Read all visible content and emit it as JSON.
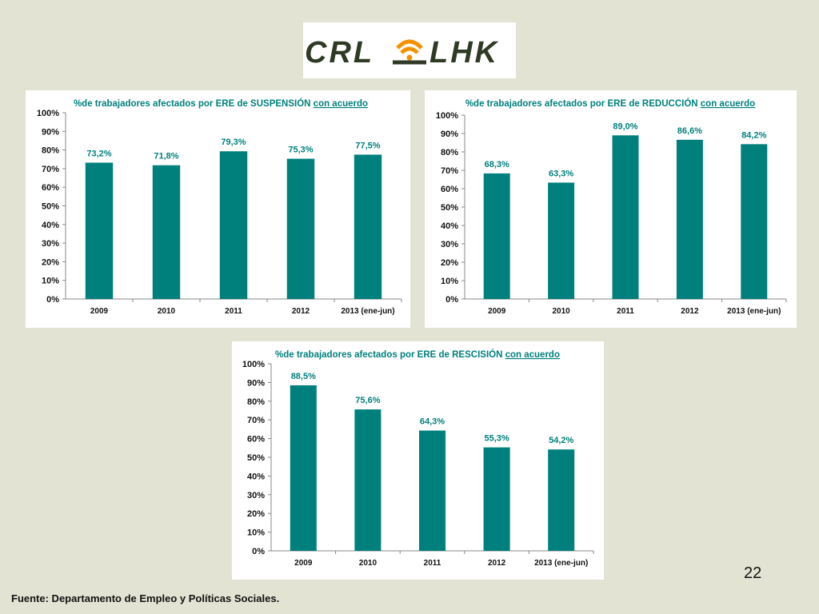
{
  "logo": {
    "left_text": "CRL",
    "right_text": "LHK",
    "dark_color": "#2f3a25",
    "accent_color": "#f39200"
  },
  "colors": {
    "bar": "#00807d",
    "title": "#00807d",
    "label": "#00807d"
  },
  "page_number": "22",
  "source": "Fuente: Departamento de Empleo y Políticas Sociales.",
  "chart_data": [
    {
      "type": "bar",
      "title_prefix": "%de trabajadores afectados por ERE de SUSPENSIÓN ",
      "title_underlined": "con acuerdo",
      "categories": [
        "2009",
        "2010",
        "2011",
        "2012",
        "2013 (ene-jun)"
      ],
      "values": [
        73.2,
        71.8,
        79.3,
        75.3,
        77.5
      ],
      "data_labels": [
        "73,2%",
        "71,8%",
        "79,3%",
        "75,3%",
        "77,5%"
      ],
      "y_ticks": [
        "0%",
        "10%",
        "20%",
        "30%",
        "40%",
        "50%",
        "60%",
        "70%",
        "80%",
        "90%",
        "100%"
      ],
      "ylim": [
        0,
        100
      ]
    },
    {
      "type": "bar",
      "title_prefix": "%de trabajadores afectados por ERE de REDUCCIÓN ",
      "title_underlined": "con acuerdo",
      "categories": [
        "2009",
        "2010",
        "2011",
        "2012",
        "2013 (ene-jun)"
      ],
      "values": [
        68.3,
        63.3,
        89.0,
        86.6,
        84.2
      ],
      "data_labels": [
        "68,3%",
        "63,3%",
        "89,0%",
        "86,6%",
        "84,2%"
      ],
      "y_ticks": [
        "0%",
        "10%",
        "20%",
        "30%",
        "40%",
        "50%",
        "60%",
        "70%",
        "80%",
        "90%",
        "100%"
      ],
      "ylim": [
        0,
        100
      ]
    },
    {
      "type": "bar",
      "title_prefix": "%de trabajadores afectados por ERE de RESCISIÓN ",
      "title_underlined": "con acuerdo",
      "categories": [
        "2009",
        "2010",
        "2011",
        "2012",
        "2013 (ene-jun)"
      ],
      "values": [
        88.5,
        75.6,
        64.3,
        55.3,
        54.2
      ],
      "data_labels": [
        "88,5%",
        "75,6%",
        "64,3%",
        "55,3%",
        "54,2%"
      ],
      "y_ticks": [
        "0%",
        "10%",
        "20%",
        "30%",
        "40%",
        "50%",
        "60%",
        "70%",
        "80%",
        "90%",
        "100%"
      ],
      "ylim": [
        0,
        100
      ]
    }
  ]
}
